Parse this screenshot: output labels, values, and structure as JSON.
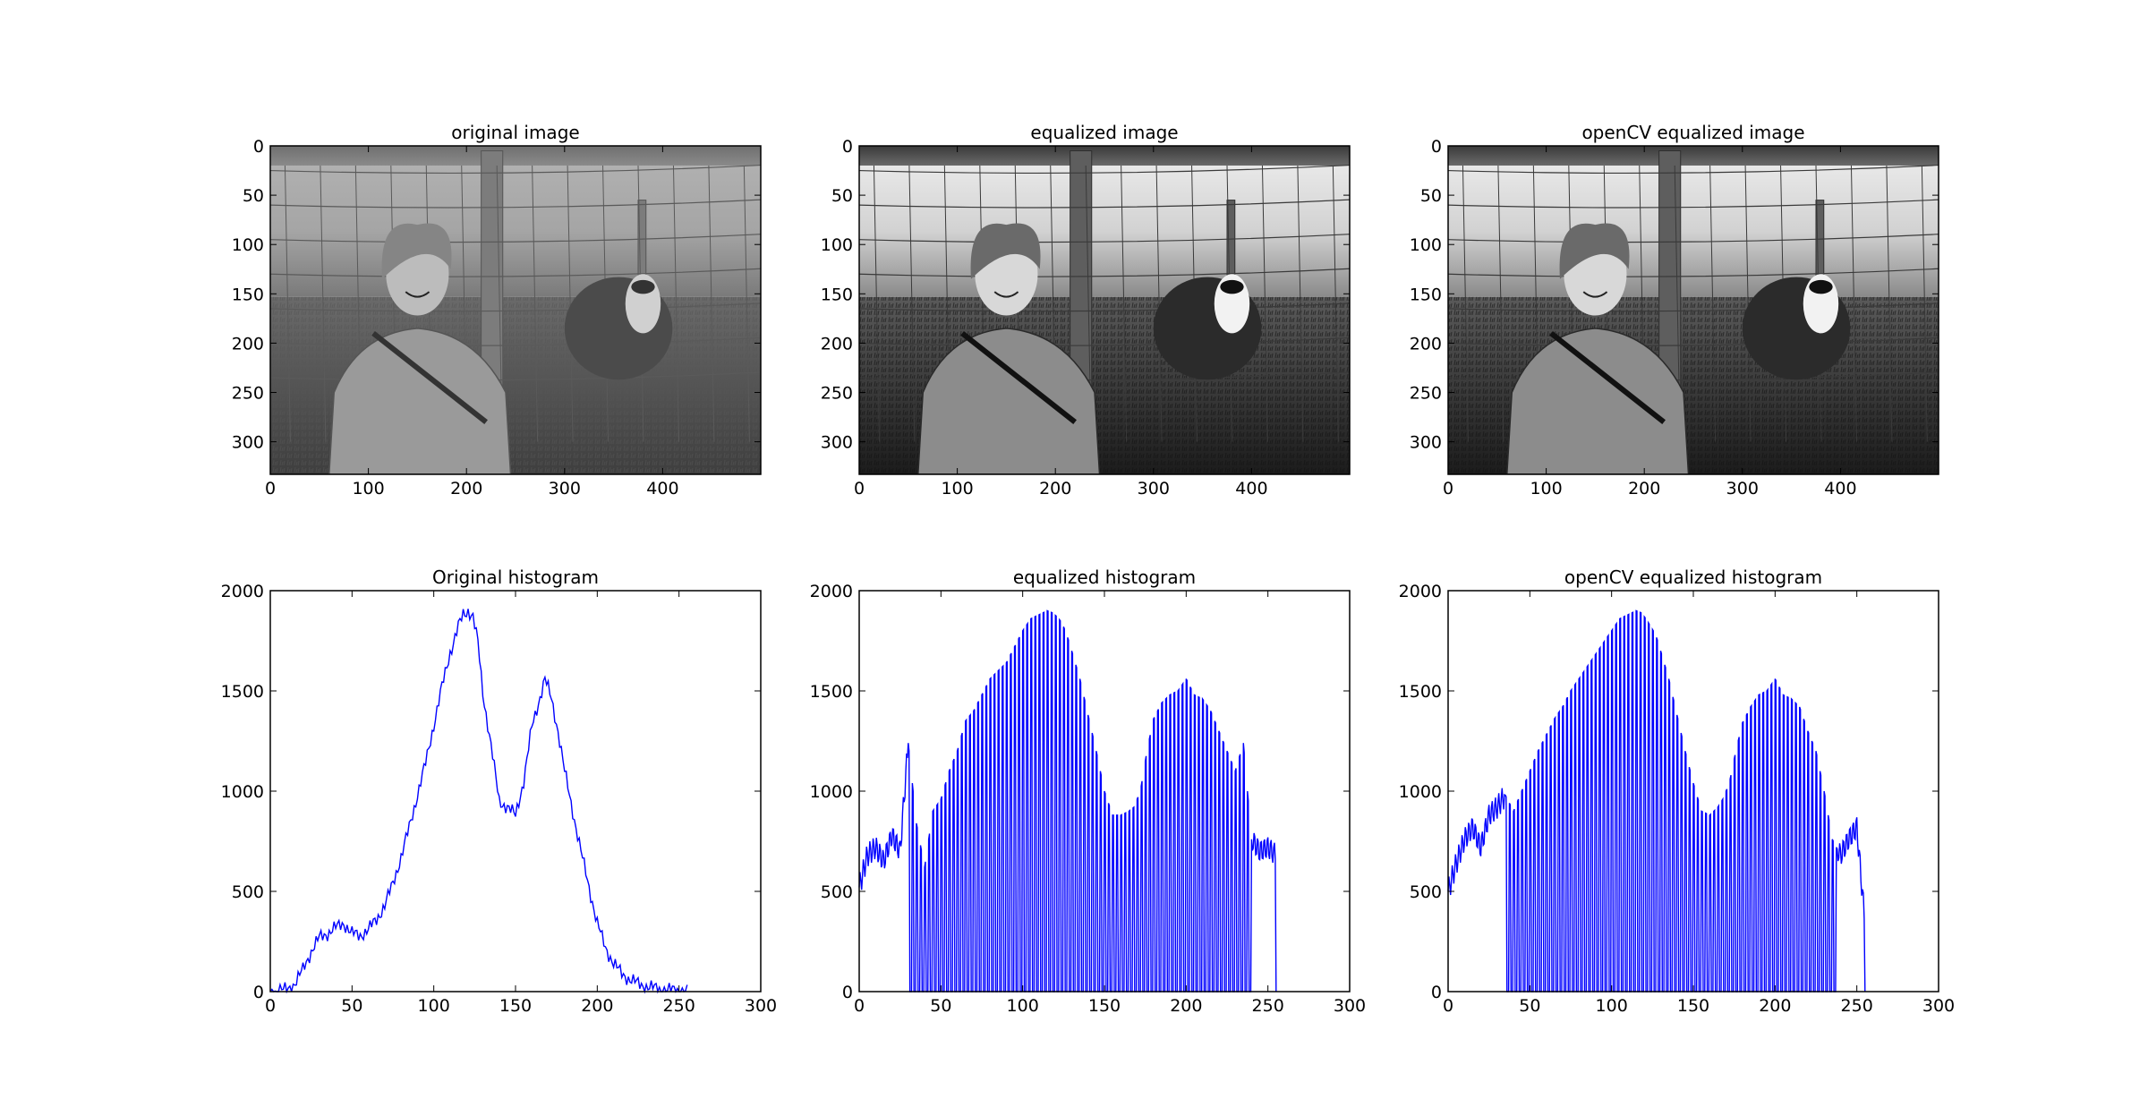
{
  "figure": {
    "background": "#ffffff",
    "line_color": "#0000ff"
  },
  "image_panels": [
    {
      "title": "original image",
      "xticks": [
        0,
        100,
        200,
        300,
        400
      ],
      "yticks": [
        0,
        50,
        100,
        150,
        200,
        250,
        300
      ],
      "xlim": [
        0,
        500
      ],
      "ylim": [
        333,
        0
      ],
      "content": "grayscale photo: woman smiling beside a sheep at a wire fence, grassy field"
    },
    {
      "title": "equalized image",
      "xticks": [
        0,
        100,
        200,
        300,
        400
      ],
      "yticks": [
        0,
        50,
        100,
        150,
        200,
        250,
        300
      ],
      "xlim": [
        0,
        500
      ],
      "ylim": [
        333,
        0
      ],
      "content": "same photo after histogram equalization (higher contrast)"
    },
    {
      "title": "openCV equalized image",
      "xticks": [
        0,
        100,
        200,
        300,
        400
      ],
      "yticks": [
        0,
        50,
        100,
        150,
        200,
        250,
        300
      ],
      "xlim": [
        0,
        500
      ],
      "ylim": [
        333,
        0
      ],
      "content": "same photo after OpenCV histogram equalization"
    }
  ],
  "chart_data": [
    {
      "type": "line",
      "title": "Original histogram",
      "xlim": [
        0,
        300
      ],
      "ylim": [
        0,
        2000
      ],
      "xticks": [
        0,
        50,
        100,
        150,
        200,
        250,
        300
      ],
      "yticks": [
        0,
        500,
        1000,
        1500,
        2000
      ],
      "grid": false,
      "series": [
        {
          "kind": "smooth",
          "color": "#0000ff",
          "x": [
            0,
            5,
            10,
            15,
            20,
            25,
            30,
            35,
            40,
            45,
            50,
            55,
            60,
            65,
            70,
            75,
            80,
            85,
            90,
            95,
            100,
            105,
            110,
            115,
            118,
            121,
            124,
            127,
            130,
            135,
            140,
            145,
            150,
            155,
            160,
            165,
            168,
            172,
            176,
            180,
            185,
            190,
            195,
            200,
            205,
            210,
            215,
            220,
            225,
            230,
            240,
            250,
            255
          ],
          "y": [
            0,
            5,
            10,
            40,
            110,
            200,
            270,
            290,
            320,
            340,
            290,
            280,
            310,
            360,
            430,
            540,
            670,
            820,
            980,
            1140,
            1330,
            1520,
            1690,
            1820,
            1880,
            1900,
            1870,
            1740,
            1490,
            1230,
            950,
            920,
            880,
            1050,
            1320,
            1470,
            1560,
            1460,
            1300,
            1100,
            900,
            700,
            520,
            340,
            220,
            140,
            90,
            60,
            40,
            25,
            10,
            5,
            0
          ]
        }
      ]
    },
    {
      "type": "line",
      "title": "equalized histogram",
      "xlim": [
        0,
        300
      ],
      "ylim": [
        0,
        2000
      ],
      "xticks": [
        0,
        50,
        100,
        150,
        200,
        250,
        300
      ],
      "yticks": [
        0,
        500,
        1000,
        1500,
        2000
      ],
      "grid": false,
      "series": [
        {
          "kind": "spiky",
          "color": "#0000ff",
          "spike_start": 30,
          "spike_end": 240,
          "spike_period": 2.5,
          "envelope_x": [
            0,
            5,
            10,
            15,
            20,
            25,
            30,
            35,
            40,
            45,
            50,
            55,
            60,
            65,
            70,
            75,
            80,
            85,
            90,
            95,
            100,
            105,
            110,
            115,
            118,
            121,
            124,
            127,
            130,
            135,
            140,
            145,
            150,
            155,
            160,
            165,
            168,
            172,
            176,
            180,
            185,
            190,
            195,
            200,
            205,
            210,
            215,
            220,
            225,
            230,
            235,
            240,
            245,
            250,
            255
          ],
          "envelope_y": [
            520,
            680,
            720,
            650,
            780,
            700,
            1240,
            840,
            620,
            900,
            960,
            1100,
            1200,
            1350,
            1400,
            1480,
            1560,
            1600,
            1640,
            1720,
            1800,
            1860,
            1880,
            1900,
            1890,
            1870,
            1840,
            1780,
            1700,
            1560,
            1380,
            1200,
            1000,
            880,
            880,
            900,
            920,
            1000,
            1200,
            1360,
            1440,
            1480,
            1500,
            1560,
            1480,
            1460,
            1400,
            1300,
            1200,
            1100,
            1240,
            760,
            700,
            720,
            680
          ]
        }
      ]
    },
    {
      "type": "line",
      "title": "openCV equalized histogram",
      "xlim": [
        0,
        300
      ],
      "ylim": [
        0,
        2000
      ],
      "xticks": [
        0,
        50,
        100,
        150,
        200,
        250,
        300
      ],
      "yticks": [
        0,
        500,
        1000,
        1500,
        2000
      ],
      "grid": false,
      "series": [
        {
          "kind": "spiky",
          "color": "#0000ff",
          "spike_start": 35,
          "spike_end": 238,
          "spike_period": 2.5,
          "envelope_x": [
            0,
            5,
            10,
            15,
            20,
            25,
            30,
            35,
            40,
            45,
            50,
            55,
            60,
            65,
            70,
            75,
            80,
            85,
            90,
            95,
            100,
            105,
            110,
            115,
            118,
            121,
            124,
            127,
            130,
            135,
            140,
            145,
            150,
            155,
            160,
            165,
            168,
            172,
            176,
            180,
            185,
            190,
            195,
            200,
            205,
            210,
            215,
            220,
            225,
            230,
            235,
            240,
            245,
            250,
            255
          ],
          "envelope_y": [
            500,
            640,
            760,
            820,
            720,
            880,
            920,
            980,
            900,
            1000,
            1100,
            1200,
            1280,
            1360,
            1420,
            1500,
            1560,
            1620,
            1680,
            1740,
            1800,
            1860,
            1880,
            1900,
            1890,
            1860,
            1820,
            1780,
            1700,
            1560,
            1380,
            1200,
            1040,
            900,
            880,
            920,
            960,
            1040,
            1200,
            1340,
            1420,
            1480,
            1500,
            1560,
            1480,
            1460,
            1420,
            1300,
            1200,
            1000,
            760,
            680,
            760,
            820,
            340
          ]
        }
      ]
    }
  ]
}
